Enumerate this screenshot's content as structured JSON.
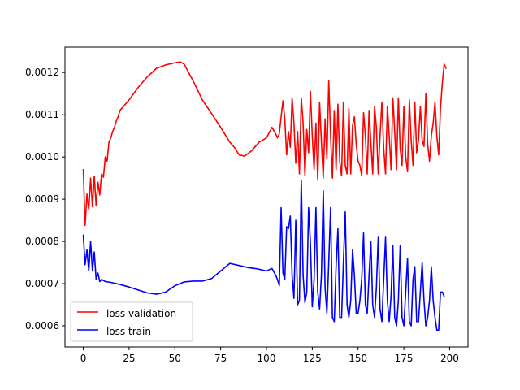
{
  "chart_data": {
    "type": "line",
    "title": "",
    "xlabel": "",
    "ylabel": "",
    "xlim": [
      -10,
      210
    ],
    "ylim": [
      0.00055,
      0.00126
    ],
    "x_ticks": [
      0,
      25,
      50,
      75,
      100,
      125,
      150,
      175,
      200
    ],
    "y_ticks": [
      0.0006,
      0.0007,
      0.0008,
      0.0009,
      0.001,
      0.0011,
      0.0012
    ],
    "x_tick_labels": [
      "0",
      "25",
      "50",
      "75",
      "100",
      "125",
      "150",
      "175",
      "200"
    ],
    "y_tick_labels": [
      "0.0006",
      "0.0007",
      "0.0008",
      "0.0009",
      "0.0010",
      "0.0011",
      "0.0012"
    ],
    "grid": false,
    "legend_position": "lower-left",
    "series": [
      {
        "name": "loss validation",
        "color": "#ff0000",
        "points": [
          [
            0,
            0.00097
          ],
          [
            1,
            0.000838
          ],
          [
            2,
            0.000912
          ],
          [
            3,
            0.000875
          ],
          [
            4,
            0.00095
          ],
          [
            5,
            0.000882
          ],
          [
            6,
            0.000955
          ],
          [
            7,
            0.000885
          ],
          [
            8,
            0.00094
          ],
          [
            9,
            0.00091
          ],
          [
            10,
            0.00096
          ],
          [
            11,
            0.000952
          ],
          [
            12,
            0.001
          ],
          [
            13,
            0.00099
          ],
          [
            14,
            0.001035
          ],
          [
            15,
            0.001045
          ],
          [
            16,
            0.00106
          ],
          [
            17,
            0.00107
          ],
          [
            18,
            0.001085
          ],
          [
            19,
            0.001095
          ],
          [
            20,
            0.00111
          ],
          [
            25,
            0.001135
          ],
          [
            30,
            0.001165
          ],
          [
            35,
            0.00119
          ],
          [
            40,
            0.00121
          ],
          [
            45,
            0.001218
          ],
          [
            50,
            0.001223
          ],
          [
            53,
            0.001225
          ],
          [
            55,
            0.00122
          ],
          [
            60,
            0.00118
          ],
          [
            65,
            0.001135
          ],
          [
            70,
            0.001103
          ],
          [
            75,
            0.00107
          ],
          [
            80,
            0.001035
          ],
          [
            83,
            0.00102
          ],
          [
            85,
            0.001005
          ],
          [
            88,
            0.001002
          ],
          [
            92,
            0.001015
          ],
          [
            96,
            0.001035
          ],
          [
            100,
            0.001045
          ],
          [
            103,
            0.00107
          ],
          [
            105,
            0.001055
          ],
          [
            106,
            0.001045
          ],
          [
            107,
            0.001055
          ],
          [
            108,
            0.001095
          ],
          [
            109,
            0.001133
          ],
          [
            110,
            0.00109
          ],
          [
            111,
            0.001005
          ],
          [
            112,
            0.00106
          ],
          [
            113,
            0.001023
          ],
          [
            114,
            0.00114
          ],
          [
            115,
            0.00108
          ],
          [
            116,
            0.000985
          ],
          [
            117,
            0.00106
          ],
          [
            118,
            0.00096
          ],
          [
            119,
            0.00114
          ],
          [
            120,
            0.00108
          ],
          [
            121,
            0.000955
          ],
          [
            122,
            0.001065
          ],
          [
            123,
            0.00101
          ],
          [
            124,
            0.001155
          ],
          [
            125,
            0.00105
          ],
          [
            126,
            0.00097
          ],
          [
            127,
            0.00108
          ],
          [
            128,
            0.000945
          ],
          [
            129,
            0.00113
          ],
          [
            130,
            0.001035
          ],
          [
            131,
            0.00095
          ],
          [
            132,
            0.00109
          ],
          [
            133,
            0.000995
          ],
          [
            134,
            0.00118
          ],
          [
            135,
            0.00105
          ],
          [
            136,
            0.00095
          ],
          [
            137,
            0.00111
          ],
          [
            138,
            0.00097
          ],
          [
            139,
            0.001125
          ],
          [
            140,
            0.00099
          ],
          [
            141,
            0.000955
          ],
          [
            142,
            0.00113
          ],
          [
            143,
            0.00098
          ],
          [
            144,
            0.00096
          ],
          [
            145,
            0.001115
          ],
          [
            146,
            0.00096
          ],
          [
            147,
            0.001075
          ],
          [
            148,
            0.001095
          ],
          [
            149,
            0.00103
          ],
          [
            150,
            0.00099
          ],
          [
            151,
            0.00098
          ],
          [
            152,
            0.000955
          ],
          [
            153,
            0.001105
          ],
          [
            154,
            0.00105
          ],
          [
            155,
            0.00096
          ],
          [
            156,
            0.00111
          ],
          [
            157,
            0.001035
          ],
          [
            158,
            0.00096
          ],
          [
            159,
            0.00112
          ],
          [
            160,
            0.00107
          ],
          [
            161,
            0.00096
          ],
          [
            162,
            0.00105
          ],
          [
            163,
            0.00113
          ],
          [
            164,
            0.00102
          ],
          [
            165,
            0.00096
          ],
          [
            166,
            0.00112
          ],
          [
            167,
            0.00105
          ],
          [
            168,
            0.00097
          ],
          [
            169,
            0.00114
          ],
          [
            170,
            0.00106
          ],
          [
            171,
            0.00097
          ],
          [
            172,
            0.00114
          ],
          [
            173,
            0.00102
          ],
          [
            174,
            0.00098
          ],
          [
            175,
            0.00112
          ],
          [
            176,
            0.001
          ],
          [
            177,
            0.000965
          ],
          [
            178,
            0.001135
          ],
          [
            179,
            0.00104
          ],
          [
            180,
            0.00098
          ],
          [
            181,
            0.00113
          ],
          [
            182,
            0.00101
          ],
          [
            183,
            0.00104
          ],
          [
            184,
            0.00112
          ],
          [
            185,
            0.00104
          ],
          [
            186,
            0.001025
          ],
          [
            187,
            0.00115
          ],
          [
            188,
            0.00103
          ],
          [
            189,
            0.00099
          ],
          [
            190,
            0.00105
          ],
          [
            191,
            0.00108
          ],
          [
            192,
            0.00113
          ],
          [
            193,
            0.00105
          ],
          [
            194,
            0.001005
          ],
          [
            195,
            0.001115
          ],
          [
            196,
            0.001175
          ],
          [
            197,
            0.00122
          ],
          [
            198,
            0.00121
          ]
        ]
      },
      {
        "name": "loss train",
        "color": "#0000ff",
        "points": [
          [
            0,
            0.000815
          ],
          [
            1,
            0.000745
          ],
          [
            2,
            0.00078
          ],
          [
            3,
            0.00073
          ],
          [
            4,
            0.0008
          ],
          [
            5,
            0.00073
          ],
          [
            6,
            0.000775
          ],
          [
            7,
            0.00071
          ],
          [
            8,
            0.000725
          ],
          [
            9,
            0.000705
          ],
          [
            10,
            0.00071
          ],
          [
            12,
            0.000705
          ],
          [
            15,
            0.000703
          ],
          [
            20,
            0.000698
          ],
          [
            25,
            0.000692
          ],
          [
            30,
            0.000685
          ],
          [
            35,
            0.000678
          ],
          [
            40,
            0.000675
          ],
          [
            45,
            0.00068
          ],
          [
            50,
            0.000695
          ],
          [
            55,
            0.000704
          ],
          [
            60,
            0.000706
          ],
          [
            65,
            0.000706
          ],
          [
            70,
            0.000712
          ],
          [
            75,
            0.00073
          ],
          [
            80,
            0.000748
          ],
          [
            85,
            0.000743
          ],
          [
            90,
            0.000738
          ],
          [
            95,
            0.000735
          ],
          [
            100,
            0.00073
          ],
          [
            103,
            0.000736
          ],
          [
            105,
            0.00072
          ],
          [
            106,
            0.00071
          ],
          [
            107,
            0.000695
          ],
          [
            108,
            0.00088
          ],
          [
            109,
            0.000725
          ],
          [
            110,
            0.00071
          ],
          [
            111,
            0.000835
          ],
          [
            112,
            0.00083
          ],
          [
            113,
            0.00086
          ],
          [
            114,
            0.00072
          ],
          [
            115,
            0.000665
          ],
          [
            116,
            0.00085
          ],
          [
            117,
            0.00065
          ],
          [
            118,
            0.00066
          ],
          [
            119,
            0.000945
          ],
          [
            120,
            0.00072
          ],
          [
            121,
            0.000655
          ],
          [
            122,
            0.00068
          ],
          [
            123,
            0.00088
          ],
          [
            124,
            0.000795
          ],
          [
            125,
            0.000645
          ],
          [
            126,
            0.00071
          ],
          [
            127,
            0.00088
          ],
          [
            128,
            0.00068
          ],
          [
            129,
            0.00064
          ],
          [
            130,
            0.00072
          ],
          [
            131,
            0.00092
          ],
          [
            132,
            0.00069
          ],
          [
            133,
            0.00063
          ],
          [
            134,
            0.00075
          ],
          [
            135,
            0.00088
          ],
          [
            136,
            0.00062
          ],
          [
            137,
            0.00061
          ],
          [
            138,
            0.00074
          ],
          [
            139,
            0.00083
          ],
          [
            140,
            0.00062
          ],
          [
            141,
            0.00062
          ],
          [
            142,
            0.00075
          ],
          [
            143,
            0.00087
          ],
          [
            144,
            0.00065
          ],
          [
            145,
            0.00062
          ],
          [
            146,
            0.00066
          ],
          [
            147,
            0.00078
          ],
          [
            148,
            0.00072
          ],
          [
            149,
            0.00063
          ],
          [
            150,
            0.00063
          ],
          [
            151,
            0.00066
          ],
          [
            152,
            0.00071
          ],
          [
            153,
            0.00082
          ],
          [
            154,
            0.00065
          ],
          [
            155,
            0.00063
          ],
          [
            156,
            0.00072
          ],
          [
            157,
            0.0008
          ],
          [
            158,
            0.00065
          ],
          [
            159,
            0.00062
          ],
          [
            160,
            0.00069
          ],
          [
            161,
            0.00081
          ],
          [
            162,
            0.00064
          ],
          [
            163,
            0.00061
          ],
          [
            164,
            0.00071
          ],
          [
            165,
            0.00081
          ],
          [
            166,
            0.00066
          ],
          [
            167,
            0.00061
          ],
          [
            168,
            0.00067
          ],
          [
            169,
            0.00079
          ],
          [
            170,
            0.00062
          ],
          [
            171,
            0.0006
          ],
          [
            172,
            0.00066
          ],
          [
            173,
            0.00079
          ],
          [
            174,
            0.00062
          ],
          [
            175,
            0.0006
          ],
          [
            176,
            0.00068
          ],
          [
            177,
            0.00076
          ],
          [
            178,
            0.00061
          ],
          [
            179,
            0.0006
          ],
          [
            180,
            0.00071
          ],
          [
            181,
            0.00074
          ],
          [
            182,
            0.00061
          ],
          [
            183,
            0.00061
          ],
          [
            184,
            0.00068
          ],
          [
            185,
            0.00075
          ],
          [
            186,
            0.00066
          ],
          [
            187,
            0.0006
          ],
          [
            188,
            0.00062
          ],
          [
            189,
            0.00066
          ],
          [
            190,
            0.00074
          ],
          [
            191,
            0.00066
          ],
          [
            192,
            0.00062
          ],
          [
            193,
            0.00059
          ],
          [
            194,
            0.00059
          ],
          [
            195,
            0.00068
          ],
          [
            196,
            0.00068
          ],
          [
            197,
            0.00067
          ]
        ]
      }
    ]
  }
}
